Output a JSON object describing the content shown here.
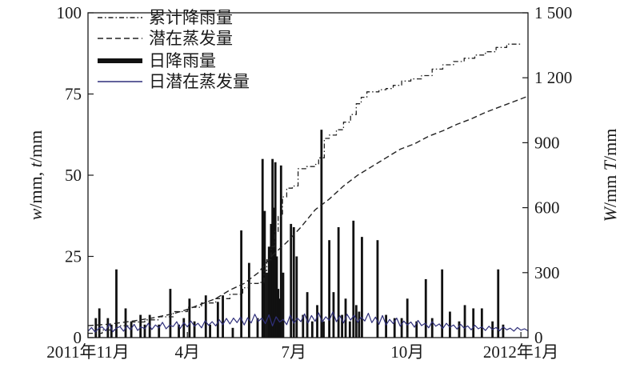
{
  "chart_data": {
    "type": "bar",
    "ylabel_left": {
      "var": "w",
      "rest": "/mm, ",
      "var2": "t",
      "rest2": "/mm"
    },
    "ylabel_right": {
      "var": "W",
      "rest": "/mm ",
      "var2": "T",
      "rest2": "/mm"
    },
    "x_range": [
      0,
      62
    ],
    "ylim_left": [
      0,
      100
    ],
    "ylim_right": [
      0,
      1500
    ],
    "x_ticks": [
      {
        "x": 0,
        "label": "2011年11月"
      },
      {
        "x": 14,
        "label": "4月"
      },
      {
        "x": 29,
        "label": "7月"
      },
      {
        "x": 45,
        "label": "10月"
      },
      {
        "x": 61,
        "label": "2012年1月"
      }
    ],
    "y_ticks_left": [
      "0",
      "25",
      "50",
      "75",
      "100"
    ],
    "y_ticks_left_values": [
      0,
      25,
      50,
      75,
      100
    ],
    "y_ticks_right": [
      "0",
      "300",
      "600",
      "900",
      "1 200",
      "1 500"
    ],
    "y_ticks_right_values": [
      0,
      300,
      600,
      900,
      1200,
      1500
    ],
    "legend_position": "top-left",
    "legend": [
      {
        "label": "累计降雨量",
        "style": "dash-dot"
      },
      {
        "label": "潜在蒸发量",
        "style": "dashed"
      },
      {
        "label": "日降雨量",
        "style": "bar"
      },
      {
        "label": "日潜在蒸发量",
        "style": "solid-blue"
      }
    ],
    "series": [
      {
        "name": "日降雨量",
        "kind": "bar",
        "axis": "left",
        "points": [
          [
            1.1,
            6
          ],
          [
            1.6,
            9
          ],
          [
            2.8,
            6
          ],
          [
            3.3,
            4
          ],
          [
            4.0,
            21
          ],
          [
            5.3,
            9
          ],
          [
            6.1,
            5
          ],
          [
            7.4,
            7
          ],
          [
            8.0,
            4
          ],
          [
            8.7,
            7
          ],
          [
            10.0,
            4
          ],
          [
            11.6,
            15
          ],
          [
            12.8,
            4
          ],
          [
            13.5,
            6
          ],
          [
            14.3,
            12
          ],
          [
            15.0,
            5
          ],
          [
            16.6,
            13
          ],
          [
            17.2,
            4
          ],
          [
            18.3,
            11
          ],
          [
            19.0,
            13
          ],
          [
            20.4,
            3
          ],
          [
            21.6,
            33
          ],
          [
            22.7,
            23
          ],
          [
            23.9,
            6
          ],
          [
            24.6,
            55
          ],
          [
            24.9,
            39
          ],
          [
            25.2,
            20
          ],
          [
            25.5,
            28
          ],
          [
            25.8,
            35
          ],
          [
            26.0,
            55
          ],
          [
            26.2,
            40
          ],
          [
            26.4,
            54
          ],
          [
            26.6,
            25
          ],
          [
            26.8,
            15
          ],
          [
            27.0,
            12
          ],
          [
            27.2,
            53
          ],
          [
            27.5,
            20
          ],
          [
            28.6,
            35
          ],
          [
            29.0,
            34
          ],
          [
            29.4,
            25
          ],
          [
            30.3,
            7
          ],
          [
            30.9,
            14
          ],
          [
            31.6,
            5
          ],
          [
            32.3,
            10
          ],
          [
            32.9,
            64
          ],
          [
            33.2,
            5
          ],
          [
            34.0,
            30
          ],
          [
            34.6,
            14
          ],
          [
            35.3,
            34
          ],
          [
            35.8,
            7
          ],
          [
            36.3,
            12
          ],
          [
            36.9,
            5
          ],
          [
            37.4,
            36
          ],
          [
            37.8,
            10
          ],
          [
            38.2,
            8
          ],
          [
            38.6,
            31
          ],
          [
            40.8,
            30
          ],
          [
            42.0,
            7
          ],
          [
            43.2,
            6
          ],
          [
            44.2,
            6
          ],
          [
            45.0,
            12
          ],
          [
            46.3,
            5
          ],
          [
            47.6,
            18
          ],
          [
            48.5,
            6
          ],
          [
            49.9,
            21
          ],
          [
            51.0,
            8
          ],
          [
            52.3,
            5
          ],
          [
            53.1,
            10
          ],
          [
            54.3,
            9
          ],
          [
            55.5,
            9
          ],
          [
            57.0,
            5
          ],
          [
            57.8,
            21
          ],
          [
            58.5,
            4
          ]
        ]
      },
      {
        "name": "累计降雨量",
        "kind": "line",
        "axis": "right",
        "points": [
          [
            0,
            20
          ],
          [
            2,
            35
          ],
          [
            4,
            55
          ],
          [
            6,
            72
          ],
          [
            8,
            82
          ],
          [
            10,
            96
          ],
          [
            12,
            120
          ],
          [
            14,
            140
          ],
          [
            16,
            160
          ],
          [
            18,
            180
          ],
          [
            20,
            200
          ],
          [
            21.8,
            230
          ],
          [
            22.6,
            250
          ],
          [
            24.0,
            255
          ],
          [
            24.8,
            310
          ],
          [
            25.2,
            360
          ],
          [
            25.8,
            420
          ],
          [
            26.3,
            490
          ],
          [
            26.8,
            560
          ],
          [
            27.4,
            650
          ],
          [
            28.0,
            690
          ],
          [
            28.8,
            700
          ],
          [
            29.6,
            780
          ],
          [
            30.8,
            790
          ],
          [
            32.0,
            800
          ],
          [
            32.5,
            830
          ],
          [
            33.3,
            920
          ],
          [
            34.0,
            935
          ],
          [
            35.0,
            960
          ],
          [
            36.0,
            995
          ],
          [
            37.0,
            1030
          ],
          [
            37.8,
            1080
          ],
          [
            38.5,
            1110
          ],
          [
            39.3,
            1135
          ],
          [
            41.0,
            1145
          ],
          [
            42.0,
            1150
          ],
          [
            43.0,
            1165
          ],
          [
            44.2,
            1185
          ],
          [
            45.5,
            1195
          ],
          [
            47.0,
            1210
          ],
          [
            48.5,
            1240
          ],
          [
            50.0,
            1260
          ],
          [
            51.5,
            1275
          ],
          [
            53.0,
            1290
          ],
          [
            54.5,
            1305
          ],
          [
            56.0,
            1320
          ],
          [
            57.5,
            1340
          ],
          [
            59.0,
            1355
          ],
          [
            61.0,
            1360
          ]
        ]
      },
      {
        "name": "潜在蒸发量",
        "kind": "line",
        "axis": "right",
        "points": [
          [
            0,
            55
          ],
          [
            3,
            62
          ],
          [
            6,
            75
          ],
          [
            9,
            90
          ],
          [
            12,
            110
          ],
          [
            14,
            130
          ],
          [
            16,
            155
          ],
          [
            18,
            180
          ],
          [
            20,
            220
          ],
          [
            22,
            250
          ],
          [
            24,
            300
          ],
          [
            26,
            380
          ],
          [
            28,
            440
          ],
          [
            30,
            510
          ],
          [
            32,
            590
          ],
          [
            34,
            640
          ],
          [
            36,
            700
          ],
          [
            38,
            750
          ],
          [
            40,
            790
          ],
          [
            42,
            830
          ],
          [
            44,
            870
          ],
          [
            46,
            895
          ],
          [
            48,
            930
          ],
          [
            50,
            955
          ],
          [
            52,
            985
          ],
          [
            54,
            1010
          ],
          [
            56,
            1040
          ],
          [
            58,
            1065
          ],
          [
            60,
            1090
          ],
          [
            62,
            1115
          ]
        ]
      },
      {
        "name": "日潜在蒸发量",
        "kind": "line",
        "axis": "left",
        "points": [
          [
            0,
            2.0
          ],
          [
            0.5,
            3.1
          ],
          [
            1,
            1.7
          ],
          [
            1.5,
            2.8
          ],
          [
            2,
            3.3
          ],
          [
            2.5,
            2.1
          ],
          [
            3,
            4.2
          ],
          [
            3.5,
            1.8
          ],
          [
            4,
            2.9
          ],
          [
            4.5,
            3.4
          ],
          [
            5,
            2.0
          ],
          [
            5.5,
            3.6
          ],
          [
            6,
            2.4
          ],
          [
            6.5,
            4.1
          ],
          [
            7,
            2.2
          ],
          [
            7.5,
            3.3
          ],
          [
            8,
            2.7
          ],
          [
            8.5,
            4.4
          ],
          [
            9,
            2.5
          ],
          [
            9.5,
            3.9
          ],
          [
            10,
            3.0
          ],
          [
            10.5,
            4.7
          ],
          [
            11,
            2.7
          ],
          [
            11.5,
            3.8
          ],
          [
            12,
            3.4
          ],
          [
            12.5,
            4.9
          ],
          [
            13,
            2.8
          ],
          [
            13.5,
            4.6
          ],
          [
            14,
            3.3
          ],
          [
            14.5,
            5.1
          ],
          [
            15,
            3.5
          ],
          [
            15.5,
            4.4
          ],
          [
            16,
            3.0
          ],
          [
            16.5,
            5.2
          ],
          [
            17,
            3.8
          ],
          [
            17.5,
            4.9
          ],
          [
            18,
            3.6
          ],
          [
            18.5,
            5.5
          ],
          [
            19,
            4.0
          ],
          [
            19.5,
            5.9
          ],
          [
            20,
            4.2
          ],
          [
            20.5,
            6.0
          ],
          [
            21,
            4.6
          ],
          [
            21.5,
            6.3
          ],
          [
            22,
            3.9
          ],
          [
            22.5,
            6.1
          ],
          [
            23,
            4.5
          ],
          [
            23.5,
            7.2
          ],
          [
            24,
            5.0
          ],
          [
            24.5,
            6.0
          ],
          [
            25,
            4.3
          ],
          [
            25.5,
            7.0
          ],
          [
            26,
            3.6
          ],
          [
            26.5,
            6.4
          ],
          [
            27,
            4.8
          ],
          [
            27.5,
            5.6
          ],
          [
            28,
            4.0
          ],
          [
            28.5,
            6.9
          ],
          [
            29,
            4.4
          ],
          [
            29.5,
            6.0
          ],
          [
            30,
            4.9
          ],
          [
            30.5,
            7.3
          ],
          [
            31,
            4.5
          ],
          [
            31.5,
            6.8
          ],
          [
            32,
            5.0
          ],
          [
            32.5,
            7.6
          ],
          [
            33,
            4.8
          ],
          [
            33.5,
            6.4
          ],
          [
            34,
            5.3
          ],
          [
            34.5,
            7.9
          ],
          [
            35,
            4.9
          ],
          [
            35.5,
            6.7
          ],
          [
            36,
            4.5
          ],
          [
            36.5,
            7.2
          ],
          [
            37,
            5.4
          ],
          [
            37.5,
            6.9
          ],
          [
            38,
            4.7
          ],
          [
            38.5,
            6.3
          ],
          [
            39,
            5.1
          ],
          [
            39.5,
            7.5
          ],
          [
            40,
            4.6
          ],
          [
            40.5,
            6.3
          ],
          [
            41,
            4.1
          ],
          [
            41.5,
            6.8
          ],
          [
            42,
            3.9
          ],
          [
            42.5,
            5.6
          ],
          [
            43,
            4.3
          ],
          [
            43.5,
            6.0
          ],
          [
            44,
            3.5
          ],
          [
            44.5,
            5.1
          ],
          [
            45,
            3.9
          ],
          [
            45.5,
            4.8
          ],
          [
            46,
            3.2
          ],
          [
            46.5,
            5.3
          ],
          [
            47,
            3.7
          ],
          [
            47.5,
            4.4
          ],
          [
            48,
            3.0
          ],
          [
            48.5,
            4.9
          ],
          [
            49,
            3.5
          ],
          [
            49.5,
            4.2
          ],
          [
            50,
            2.8
          ],
          [
            50.5,
            4.4
          ],
          [
            51,
            3.2
          ],
          [
            51.5,
            3.9
          ],
          [
            52,
            2.6
          ],
          [
            52.5,
            4.1
          ],
          [
            53,
            2.9
          ],
          [
            53.5,
            3.6
          ],
          [
            54,
            2.4
          ],
          [
            54.5,
            3.8
          ],
          [
            55,
            2.7
          ],
          [
            55.5,
            3.3
          ],
          [
            56,
            2.2
          ],
          [
            56.5,
            3.5
          ],
          [
            57,
            2.5
          ],
          [
            57.5,
            3.1
          ],
          [
            58,
            2.1
          ],
          [
            58.5,
            3.3
          ],
          [
            59,
            2.4
          ],
          [
            59.5,
            2.9
          ],
          [
            60,
            2.0
          ],
          [
            60.5,
            3.1
          ],
          [
            61,
            2.3
          ],
          [
            61.5,
            2.7
          ],
          [
            62,
            2.1
          ]
        ]
      }
    ]
  },
  "colors": {
    "axis": "#1a1a1a",
    "bars": "#111111",
    "cumulative_rain": "#222222",
    "potential_et": "#222222",
    "daily_et": "#2f2f7a"
  }
}
